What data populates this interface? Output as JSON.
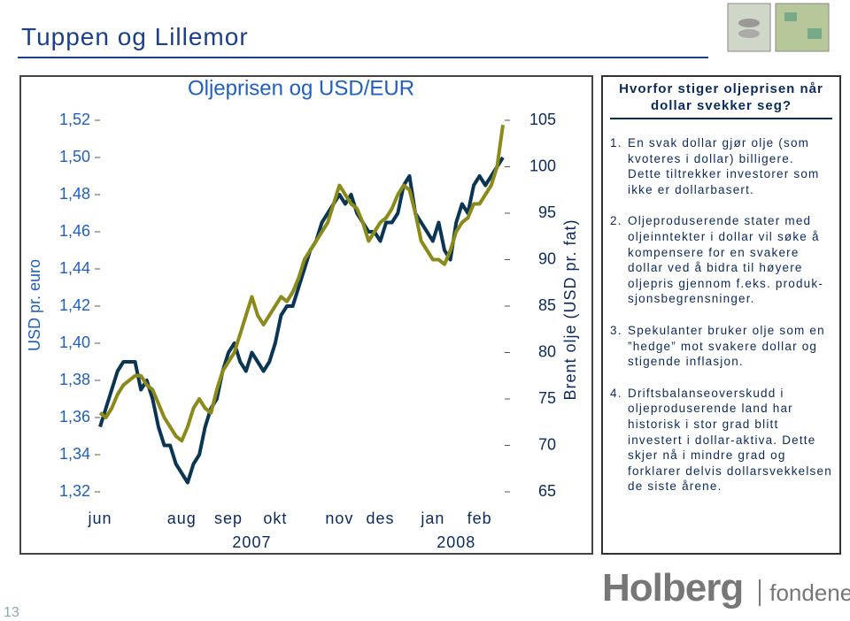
{
  "slide_title": "Tuppen og Lillemor",
  "page_number": "13",
  "logo": {
    "main": "Holberg",
    "sub": "fondene"
  },
  "sidebar": {
    "title": "Hvorfor stiger oljeprisen når dollar svekker seg?",
    "items": [
      {
        "number": "1.",
        "text": "En svak dollar gjør olje (som kvoteres i dollar) billigere. Dette tiltrekker investorer som ikke er dollarbasert."
      },
      {
        "number": "2.",
        "text": "Oljeproduserende stater med oljeinntekter i dollar vil søke å kompensere for en svakere dollar ved å bidra til høyere oljepris gjennom f.eks. produk-sjonsbegrensninger."
      },
      {
        "number": "3.",
        "text": "Spekulanter bruker olje som en ”hedge” mot svakere dollar og stigende inflasjon."
      },
      {
        "number": "4.",
        "text": "Driftsbalanseoverskudd i oljeproduserende land har historisk i stor grad blitt investert i dollar-aktiva. Dette skjer nå i mindre grad og forklarer delvis dollarsvekkelsen de siste årene."
      }
    ]
  },
  "chart_data": {
    "type": "line",
    "title": "Oljeprisen og USD/EUR",
    "y_label": "USD pr. euro",
    "y2_label": "Brent olje (USD pr. fat)",
    "categories": [
      "jun",
      null,
      null,
      null,
      null,
      null,
      null,
      null,
      null,
      null,
      null,
      null,
      null,
      null,
      "aug",
      null,
      null,
      null,
      null,
      null,
      null,
      null,
      "sep",
      null,
      null,
      null,
      null,
      null,
      null,
      null,
      "okt",
      null,
      null,
      null,
      null,
      null,
      null,
      null,
      null,
      null,
      null,
      "nov",
      null,
      null,
      null,
      null,
      null,
      null,
      "des",
      null,
      null,
      null,
      null,
      null,
      null,
      null,
      null,
      "jan",
      null,
      null,
      null,
      null,
      null,
      null,
      null,
      "feb",
      null,
      null,
      null,
      null
    ],
    "x_group_labels": [
      "2007",
      "2008"
    ],
    "ylim": [
      1.32,
      1.52
    ],
    "yticks": [
      {
        "value": 1.32,
        "label": "1,32"
      },
      {
        "value": 1.34,
        "label": "1,34"
      },
      {
        "value": 1.36,
        "label": "1,36"
      },
      {
        "value": 1.38,
        "label": "1,38"
      },
      {
        "value": 1.4,
        "label": "1,40"
      },
      {
        "value": 1.42,
        "label": "1,42"
      },
      {
        "value": 1.44,
        "label": "1,44"
      },
      {
        "value": 1.46,
        "label": "1,46"
      },
      {
        "value": 1.48,
        "label": "1,48"
      },
      {
        "value": 1.5,
        "label": "1,50"
      },
      {
        "value": 1.52,
        "label": "1,52"
      }
    ],
    "y2lim": [
      65,
      105
    ],
    "y2ticks": [
      65,
      70,
      75,
      80,
      85,
      90,
      95,
      100,
      105
    ],
    "series": [
      {
        "color": "#0b3653",
        "values": [
          1.355,
          1.365,
          1.375,
          1.385,
          1.39,
          1.39,
          1.39,
          1.375,
          1.38,
          1.37,
          1.355,
          1.345,
          1.345,
          1.335,
          1.33,
          1.325,
          1.335,
          1.34,
          1.355,
          1.365,
          1.37,
          1.385,
          1.395,
          1.4,
          1.39,
          1.385,
          1.395,
          1.39,
          1.385,
          1.39,
          1.4,
          1.415,
          1.42,
          1.42,
          1.43,
          1.44,
          1.45,
          1.455,
          1.465,
          1.47,
          1.475,
          1.48,
          1.475,
          1.48,
          1.47,
          1.465,
          1.46,
          1.46,
          1.455,
          1.465,
          1.465,
          1.47,
          1.485,
          1.49,
          1.47,
          1.465,
          1.46,
          1.455,
          1.465,
          1.45,
          1.445,
          1.465,
          1.475,
          1.47,
          1.485,
          1.49,
          1.485,
          1.49,
          1.495,
          1.5
        ]
      },
      {
        "color": "#8b8b1c",
        "axis": "y2",
        "values": [
          73.5,
          73,
          74,
          75.5,
          76.5,
          77,
          77.5,
          77.5,
          76.5,
          76,
          74.5,
          73,
          72,
          71,
          70.5,
          72,
          74,
          75,
          74,
          73.5,
          76,
          78,
          79,
          80,
          82,
          84,
          86,
          84,
          83,
          84,
          85,
          86,
          85.5,
          86.5,
          88,
          90,
          91,
          92,
          93,
          94,
          96,
          98,
          97,
          96,
          95.5,
          94,
          92,
          93,
          94,
          94.5,
          95.5,
          97,
          98,
          97.5,
          95,
          92,
          91,
          90,
          90,
          89.5,
          91,
          93,
          94,
          94.5,
          96,
          96,
          97,
          98,
          100,
          104.5
        ]
      }
    ]
  }
}
